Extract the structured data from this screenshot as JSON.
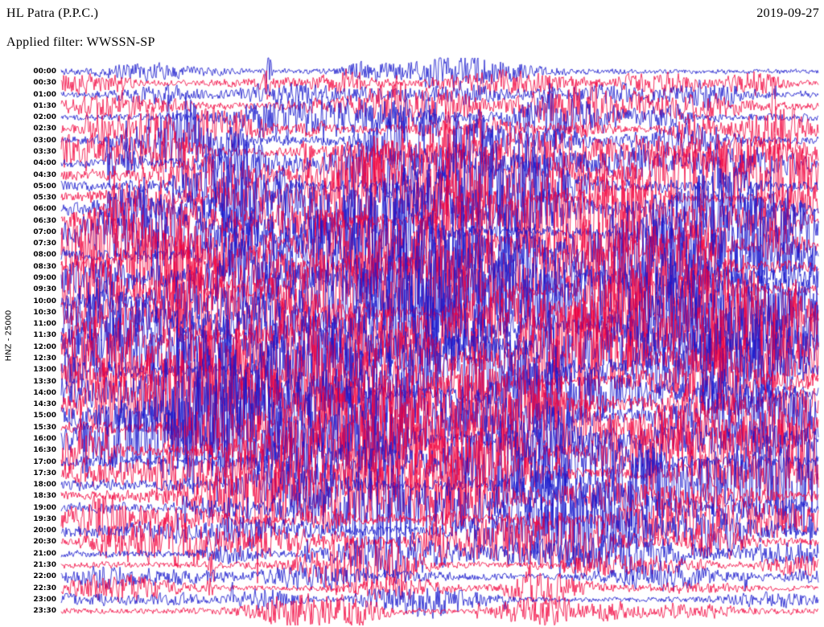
{
  "header": {
    "station": "HL Patra (P.P.C.)",
    "date": "2019-09-27",
    "filter": "Applied filter: WWSSN-SP"
  },
  "axis": {
    "left_label": "HNZ - 25000"
  },
  "colors": {
    "blue": "#1414cc",
    "red": "#f1003c",
    "background": "#ffffff",
    "text": "#000000"
  },
  "chart_data": {
    "type": "line",
    "title": "Helicorder seismogram, station HL Patra (P.P.C.), channel HNZ, 2019-09-27, filter WWSSN-SP",
    "xlabel": "each row spans 30 minutes",
    "ylabel": "HNZ - 25000",
    "row_interval_minutes": 30,
    "rows": [
      {
        "time": "00:00",
        "color": "blue",
        "activity": 0.2
      },
      {
        "time": "00:30",
        "color": "red",
        "activity": 0.28
      },
      {
        "time": "01:00",
        "color": "blue",
        "activity": 0.34
      },
      {
        "time": "01:30",
        "color": "red",
        "activity": 0.42
      },
      {
        "time": "02:00",
        "color": "blue",
        "activity": 0.48
      },
      {
        "time": "02:30",
        "color": "red",
        "activity": 0.5
      },
      {
        "time": "03:00",
        "color": "blue",
        "activity": 0.52
      },
      {
        "time": "03:30",
        "color": "red",
        "activity": 0.58
      },
      {
        "time": "04:00",
        "color": "blue",
        "activity": 0.72
      },
      {
        "time": "04:30",
        "color": "red",
        "activity": 0.78
      },
      {
        "time": "05:00",
        "color": "blue",
        "activity": 0.82
      },
      {
        "time": "05:30",
        "color": "red",
        "activity": 0.84
      },
      {
        "time": "06:00",
        "color": "blue",
        "activity": 0.88
      },
      {
        "time": "06:30",
        "color": "red",
        "activity": 0.88
      },
      {
        "time": "07:00",
        "color": "blue",
        "activity": 0.92
      },
      {
        "time": "07:30",
        "color": "red",
        "activity": 0.92
      },
      {
        "time": "08:00",
        "color": "blue",
        "activity": 0.96
      },
      {
        "time": "08:30",
        "color": "red",
        "activity": 0.96
      },
      {
        "time": "09:00",
        "color": "blue",
        "activity": 1.0
      },
      {
        "time": "09:30",
        "color": "red",
        "activity": 1.0
      },
      {
        "time": "10:00",
        "color": "blue",
        "activity": 1.0
      },
      {
        "time": "10:30",
        "color": "red",
        "activity": 1.0
      },
      {
        "time": "11:00",
        "color": "blue",
        "activity": 1.0
      },
      {
        "time": "11:30",
        "color": "red",
        "activity": 0.98
      },
      {
        "time": "12:00",
        "color": "blue",
        "activity": 0.96
      },
      {
        "time": "12:30",
        "color": "red",
        "activity": 0.96
      },
      {
        "time": "13:00",
        "color": "blue",
        "activity": 0.95
      },
      {
        "time": "13:30",
        "color": "red",
        "activity": 0.95
      },
      {
        "time": "14:00",
        "color": "blue",
        "activity": 0.94
      },
      {
        "time": "14:30",
        "color": "red",
        "activity": 0.92
      },
      {
        "time": "15:00",
        "color": "blue",
        "activity": 0.92
      },
      {
        "time": "15:30",
        "color": "red",
        "activity": 0.9
      },
      {
        "time": "16:00",
        "color": "blue",
        "activity": 0.9
      },
      {
        "time": "16:30",
        "color": "red",
        "activity": 0.88
      },
      {
        "time": "17:00",
        "color": "blue",
        "activity": 0.86
      },
      {
        "time": "17:30",
        "color": "red",
        "activity": 0.84
      },
      {
        "time": "18:00",
        "color": "blue",
        "activity": 0.8
      },
      {
        "time": "18:30",
        "color": "red",
        "activity": 0.76
      },
      {
        "time": "19:00",
        "color": "blue",
        "activity": 0.72
      },
      {
        "time": "19:30",
        "color": "red",
        "activity": 0.66
      },
      {
        "time": "20:00",
        "color": "blue",
        "activity": 0.6
      },
      {
        "time": "20:30",
        "color": "red",
        "activity": 0.54
      },
      {
        "time": "21:00",
        "color": "blue",
        "activity": 0.48
      },
      {
        "time": "21:30",
        "color": "red",
        "activity": 0.34
      },
      {
        "time": "22:00",
        "color": "blue",
        "activity": 0.28
      },
      {
        "time": "22:30",
        "color": "red",
        "activity": 0.26
      },
      {
        "time": "23:00",
        "color": "blue",
        "activity": 0.24
      },
      {
        "time": "23:30",
        "color": "red",
        "activity": 0.3
      }
    ]
  }
}
